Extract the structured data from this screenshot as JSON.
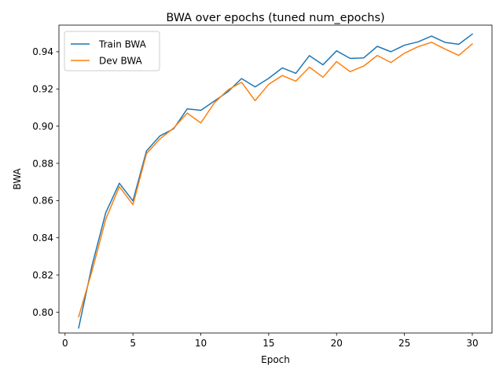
{
  "chart_data": {
    "type": "line",
    "title": "BWA over epochs (tuned num_epochs)",
    "xlabel": "Epoch",
    "ylabel": "BWA",
    "xlim": [
      -0.45,
      31.45
    ],
    "ylim": [
      0.7888,
      0.9543
    ],
    "xticks": [
      0,
      5,
      10,
      15,
      20,
      25,
      30
    ],
    "xtick_labels": [
      "0",
      "5",
      "10",
      "15",
      "20",
      "25",
      "30"
    ],
    "yticks": [
      0.8,
      0.82,
      0.84,
      0.86,
      0.88,
      0.9,
      0.92,
      0.94
    ],
    "ytick_labels": [
      "0.80",
      "0.82",
      "0.84",
      "0.86",
      "0.88",
      "0.90",
      "0.92",
      "0.94"
    ],
    "grid": false,
    "legend_position": "upper-left",
    "x": [
      1,
      2,
      3,
      4,
      5,
      6,
      7,
      8,
      9,
      10,
      11,
      12,
      13,
      14,
      15,
      16,
      17,
      18,
      19,
      20,
      21,
      22,
      23,
      24,
      25,
      26,
      27,
      28,
      29,
      30
    ],
    "series": [
      {
        "name": "Train BWA",
        "color": "#1f77b4",
        "values": [
          0.7915,
          0.8255,
          0.8535,
          0.8693,
          0.8598,
          0.8867,
          0.8948,
          0.8986,
          0.9093,
          0.9085,
          0.9135,
          0.9185,
          0.9256,
          0.9211,
          0.9257,
          0.9313,
          0.9284,
          0.9379,
          0.933,
          0.9405,
          0.9364,
          0.9367,
          0.9429,
          0.94,
          0.9435,
          0.9453,
          0.9484,
          0.945,
          0.944,
          0.9495
        ]
      },
      {
        "name": "Dev BWA",
        "color": "#ff7f0e",
        "values": [
          0.7975,
          0.8225,
          0.85,
          0.8675,
          0.8578,
          0.8853,
          0.8932,
          0.899,
          0.907,
          0.9017,
          0.9125,
          0.9195,
          0.9236,
          0.9137,
          0.9225,
          0.9272,
          0.9242,
          0.9317,
          0.9263,
          0.9347,
          0.9293,
          0.9323,
          0.938,
          0.9342,
          0.9392,
          0.9427,
          0.9451,
          0.9414,
          0.938,
          0.9442
        ]
      }
    ]
  }
}
